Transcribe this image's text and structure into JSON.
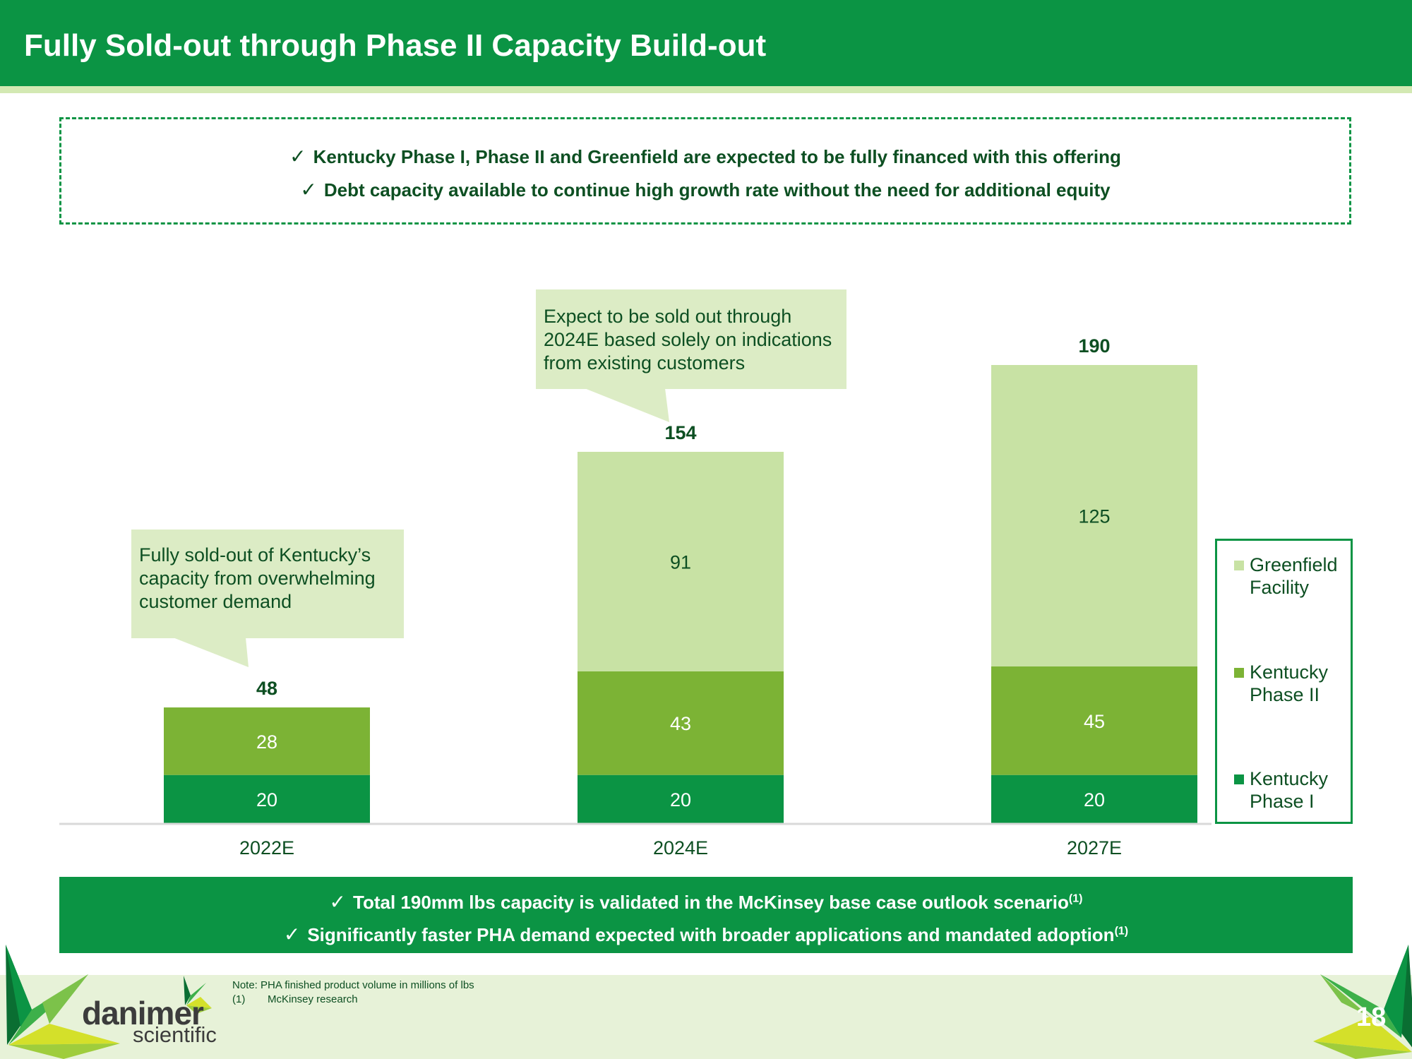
{
  "header": {
    "title": "Fully Sold-out through Phase II Capacity Build-out"
  },
  "top_box": {
    "bullets": [
      "Kentucky Phase I, Phase II and Greenfield are expected to be fully financed with this offering",
      "Debt capacity available to continue high growth rate without the need for additional equity"
    ],
    "check_icon": "✓"
  },
  "callouts": [
    {
      "text": "Fully sold-out of Kentucky’s capacity from overwhelming customer demand",
      "points_to": "2022E"
    },
    {
      "text": "Expect to be sold out through 2024E based solely on indications from existing customers",
      "points_to": "2024E"
    }
  ],
  "colors": {
    "brand_green": "#0b9444",
    "kentucky_phase_i": "#0b9444",
    "kentucky_phase_ii": "#7cb335",
    "greenfield": "#c8e2a4",
    "dark_text": "#0d4f22",
    "callout_bg": "#dcecc5"
  },
  "chart_data": {
    "type": "bar",
    "stacked": true,
    "title": "",
    "xlabel": "",
    "ylabel": "",
    "categories": [
      "2022E",
      "2024E",
      "2027E"
    ],
    "series": [
      {
        "name": "Kentucky Phase I",
        "values": [
          20,
          20,
          20
        ],
        "color": "#0b9444",
        "label_color": "#ffffff"
      },
      {
        "name": "Kentucky Phase II",
        "values": [
          28,
          43,
          45
        ],
        "color": "#7cb335",
        "label_color": "#ffffff"
      },
      {
        "name": "Greenfield Facility",
        "values": [
          0,
          91,
          125
        ],
        "color": "#c8e2a4",
        "label_color": "#0d4f22"
      }
    ],
    "totals": [
      48,
      154,
      190
    ],
    "ylim": [
      0,
      190
    ],
    "grid": false,
    "y_axis_visible": false,
    "legend": {
      "placement": "right",
      "entries": [
        "Greenfield Facility",
        "Kentucky Phase II",
        "Kentucky Phase I"
      ]
    }
  },
  "legend": {
    "items": [
      {
        "label": "Greenfield Facility",
        "color": "#c8e2a4"
      },
      {
        "label": "Kentucky Phase II",
        "color": "#7cb335"
      },
      {
        "label": "Kentucky Phase I",
        "color": "#0b9444"
      }
    ]
  },
  "bottom_box": {
    "bullets": [
      {
        "text": "Total 190mm lbs capacity is validated in the McKinsey base case outlook scenario",
        "footnote": "(1)"
      },
      {
        "text": "Significantly faster PHA demand expected with broader applications and mandated adoption",
        "footnote": "(1)"
      }
    ]
  },
  "footer": {
    "note": "Note: PHA finished product volume in millions of lbs",
    "footnote_ref": "(1)",
    "footnote_text": "McKinsey research",
    "logo_main": "danimer",
    "logo_sub": "scientific",
    "page_number": "18"
  }
}
